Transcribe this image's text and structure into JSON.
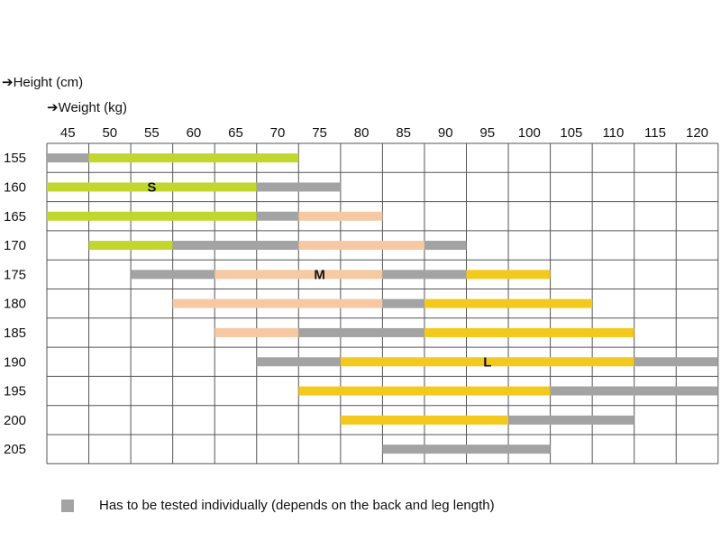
{
  "chart_data": {
    "type": "table",
    "title": "",
    "ylabel": "Height (cm)",
    "xlabel": "Weight (kg)",
    "weights": [
      45,
      50,
      55,
      60,
      65,
      70,
      75,
      80,
      85,
      90,
      95,
      100,
      105,
      110,
      115,
      120
    ],
    "heights": [
      155,
      160,
      165,
      170,
      175,
      180,
      185,
      190,
      195,
      200,
      205
    ],
    "colors": {
      "S": "#c2d72e",
      "M": "#f6c9a3",
      "L": "#f3c91e",
      "test": "#a3a3a3"
    },
    "rows": [
      {
        "height": 155,
        "segments": [
          {
            "from": 45,
            "to": 45,
            "size": "test"
          },
          {
            "from": 50,
            "to": 70,
            "size": "S"
          }
        ]
      },
      {
        "height": 160,
        "segments": [
          {
            "from": 45,
            "to": 65,
            "size": "S"
          },
          {
            "from": 70,
            "to": 75,
            "size": "test"
          }
        ]
      },
      {
        "height": 165,
        "segments": [
          {
            "from": 45,
            "to": 65,
            "size": "S"
          },
          {
            "from": 70,
            "to": 70,
            "size": "test"
          },
          {
            "from": 75,
            "to": 80,
            "size": "M"
          }
        ]
      },
      {
        "height": 170,
        "segments": [
          {
            "from": 50,
            "to": 55,
            "size": "S"
          },
          {
            "from": 60,
            "to": 70,
            "size": "test"
          },
          {
            "from": 75,
            "to": 85,
            "size": "M"
          },
          {
            "from": 90,
            "to": 90,
            "size": "test"
          }
        ]
      },
      {
        "height": 175,
        "segments": [
          {
            "from": 55,
            "to": 60,
            "size": "test"
          },
          {
            "from": 65,
            "to": 80,
            "size": "M"
          },
          {
            "from": 85,
            "to": 90,
            "size": "test"
          },
          {
            "from": 95,
            "to": 100,
            "size": "L"
          }
        ]
      },
      {
        "height": 180,
        "segments": [
          {
            "from": 60,
            "to": 80,
            "size": "M"
          },
          {
            "from": 85,
            "to": 85,
            "size": "test"
          },
          {
            "from": 90,
            "to": 105,
            "size": "L"
          }
        ]
      },
      {
        "height": 185,
        "segments": [
          {
            "from": 65,
            "to": 70,
            "size": "M"
          },
          {
            "from": 75,
            "to": 85,
            "size": "test"
          },
          {
            "from": 90,
            "to": 110,
            "size": "L"
          }
        ]
      },
      {
        "height": 190,
        "segments": [
          {
            "from": 70,
            "to": 75,
            "size": "test"
          },
          {
            "from": 80,
            "to": 110,
            "size": "L"
          },
          {
            "from": 115,
            "to": 120,
            "size": "test"
          }
        ]
      },
      {
        "height": 195,
        "segments": [
          {
            "from": 75,
            "to": 100,
            "size": "L"
          },
          {
            "from": 105,
            "to": 120,
            "size": "test"
          }
        ]
      },
      {
        "height": 200,
        "segments": [
          {
            "from": 80,
            "to": 95,
            "size": "L"
          },
          {
            "from": 100,
            "to": 110,
            "size": "test"
          }
        ]
      },
      {
        "height": 205,
        "segments": [
          {
            "from": 85,
            "to": 100,
            "size": "test"
          }
        ]
      }
    ],
    "size_labels": [
      {
        "text": "S",
        "height": 160,
        "weight": 55
      },
      {
        "text": "M",
        "height": 175,
        "weight": 75
      },
      {
        "text": "L",
        "height": 190,
        "weight": 95
      }
    ],
    "legend": [
      {
        "color": "#a3a3a3",
        "text": "Has to be tested individually (depends on the back and leg length)"
      }
    ]
  },
  "axis": {
    "height_label": "➔Height (cm)",
    "weight_label": "➔Weight (kg)"
  }
}
